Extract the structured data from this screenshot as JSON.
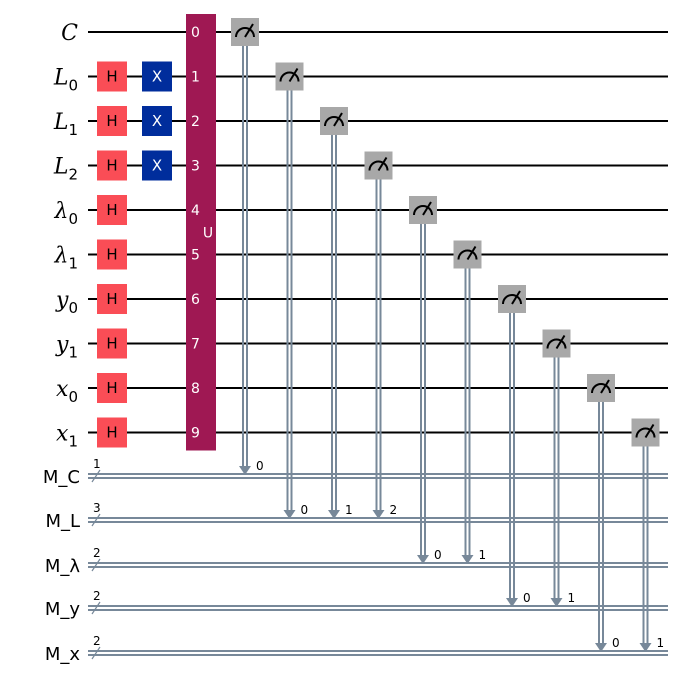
{
  "colors": {
    "wire": "#000000",
    "classical_wire": "#778899",
    "h_gate": "#fa4d56",
    "x_gate": "#002d9c",
    "u_gate": "#9f1853",
    "measure": "#a8a8a8",
    "gate_text_h": "#000000",
    "gate_text_x": "#ffffff"
  },
  "qubits": [
    {
      "base": "C",
      "sub": ""
    },
    {
      "base": "L",
      "sub": "0"
    },
    {
      "base": "L",
      "sub": "1"
    },
    {
      "base": "L",
      "sub": "2"
    },
    {
      "base": "λ",
      "sub": "0"
    },
    {
      "base": "λ",
      "sub": "1"
    },
    {
      "base": "y",
      "sub": "0"
    },
    {
      "base": "y",
      "sub": "1"
    },
    {
      "base": "x",
      "sub": "0"
    },
    {
      "base": "x",
      "sub": "1"
    }
  ],
  "cregs": [
    {
      "name": "M_C",
      "size": "1"
    },
    {
      "name": "M_L",
      "size": "3"
    },
    {
      "name": "M_λ",
      "size": "2"
    },
    {
      "name": "M_y",
      "size": "2"
    },
    {
      "name": "M_x",
      "size": "2"
    }
  ],
  "h_gates": {
    "label": "H",
    "qubits": [
      1,
      2,
      3,
      4,
      5,
      6,
      7,
      8,
      9
    ]
  },
  "x_gates": {
    "label": "X",
    "qubits": [
      1,
      2,
      3
    ]
  },
  "u_gate": {
    "label": "U",
    "indices": [
      "0",
      "1",
      "2",
      "3",
      "4",
      "5",
      "6",
      "7",
      "8",
      "9"
    ]
  },
  "measurements": [
    {
      "qubit": 0,
      "creg": 0,
      "bit": "0"
    },
    {
      "qubit": 1,
      "creg": 1,
      "bit": "0"
    },
    {
      "qubit": 2,
      "creg": 1,
      "bit": "1"
    },
    {
      "qubit": 3,
      "creg": 1,
      "bit": "2"
    },
    {
      "qubit": 4,
      "creg": 2,
      "bit": "0"
    },
    {
      "qubit": 5,
      "creg": 2,
      "bit": "1"
    },
    {
      "qubit": 6,
      "creg": 3,
      "bit": "0"
    },
    {
      "qubit": 7,
      "creg": 3,
      "bit": "1"
    },
    {
      "qubit": 8,
      "creg": 4,
      "bit": "0"
    },
    {
      "qubit": 9,
      "creg": 4,
      "bit": "1"
    }
  ]
}
